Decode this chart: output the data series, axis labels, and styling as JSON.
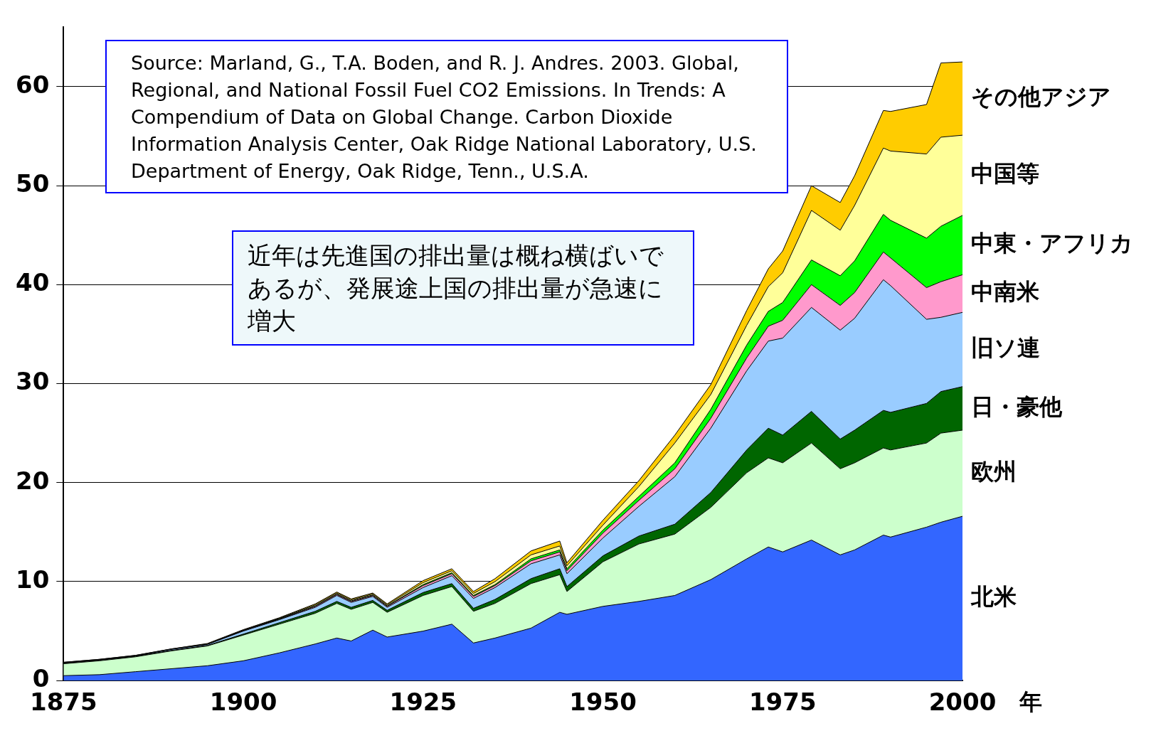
{
  "chart_data": {
    "type": "area",
    "stacked": true,
    "xlabel": "年",
    "x": [
      1875,
      1880,
      1885,
      1890,
      1895,
      1900,
      1905,
      1910,
      1913,
      1915,
      1918,
      1920,
      1925,
      1929,
      1932,
      1935,
      1940,
      1944,
      1945,
      1950,
      1955,
      1960,
      1965,
      1970,
      1973,
      1975,
      1979,
      1983,
      1985,
      1989,
      1990,
      1995,
      1997,
      2000
    ],
    "series": [
      {
        "name": "北米",
        "color": "#3366ff",
        "values": [
          0.5,
          0.6,
          0.9,
          1.2,
          1.5,
          2.0,
          2.8,
          3.7,
          4.3,
          4.0,
          5.1,
          4.4,
          5.0,
          5.7,
          3.8,
          4.3,
          5.3,
          6.9,
          6.7,
          7.5,
          8.0,
          8.6,
          10.2,
          12.3,
          13.5,
          13.0,
          14.2,
          12.7,
          13.2,
          14.7,
          14.5,
          15.5,
          16.0,
          16.6
        ]
      },
      {
        "name": "欧州",
        "color": "#ccffcc",
        "values": [
          1.2,
          1.4,
          1.5,
          1.8,
          2.0,
          2.6,
          2.9,
          3.1,
          3.5,
          3.2,
          2.8,
          2.5,
          3.6,
          3.8,
          3.2,
          3.5,
          4.5,
          3.8,
          2.3,
          4.5,
          5.8,
          6.2,
          7.3,
          8.7,
          9.0,
          9.0,
          9.8,
          8.7,
          8.8,
          8.8,
          8.8,
          8.5,
          9.0,
          8.7
        ]
      },
      {
        "name": "日・豪他",
        "color": "#006600",
        "values": [
          0.05,
          0.05,
          0.05,
          0.05,
          0.05,
          0.1,
          0.15,
          0.2,
          0.2,
          0.2,
          0.2,
          0.2,
          0.3,
          0.3,
          0.3,
          0.4,
          0.5,
          0.6,
          0.5,
          0.6,
          0.8,
          1.0,
          1.5,
          2.3,
          3.0,
          2.8,
          3.2,
          3.0,
          3.3,
          3.8,
          3.8,
          4.0,
          4.2,
          4.4
        ]
      },
      {
        "name": "旧ソ連",
        "color": "#99ccff",
        "values": [
          0.05,
          0.05,
          0.05,
          0.1,
          0.1,
          0.3,
          0.3,
          0.4,
          0.6,
          0.5,
          0.4,
          0.3,
          0.5,
          0.8,
          1.0,
          1.2,
          1.5,
          1.4,
          1.3,
          1.8,
          3.0,
          4.8,
          6.5,
          8.0,
          8.8,
          9.8,
          10.5,
          11.0,
          11.3,
          13.2,
          12.8,
          8.5,
          7.5,
          7.5
        ]
      },
      {
        "name": "中南米",
        "color": "#ff99cc",
        "values": [
          0,
          0,
          0,
          0,
          0,
          0.05,
          0.05,
          0.1,
          0.1,
          0.1,
          0.1,
          0.1,
          0.2,
          0.2,
          0.2,
          0.2,
          0.3,
          0.3,
          0.3,
          0.5,
          0.6,
          0.8,
          1.0,
          1.3,
          1.5,
          1.8,
          2.3,
          2.5,
          2.6,
          2.8,
          2.8,
          3.2,
          3.6,
          3.8
        ]
      },
      {
        "name": "中東・アフリカ",
        "color": "#00ff00",
        "values": [
          0,
          0,
          0,
          0,
          0,
          0,
          0.05,
          0.05,
          0.05,
          0.05,
          0.05,
          0.05,
          0.1,
          0.1,
          0.1,
          0.1,
          0.2,
          0.2,
          0.2,
          0.3,
          0.4,
          0.6,
          0.9,
          1.3,
          1.5,
          1.8,
          2.5,
          3.0,
          3.2,
          3.8,
          3.8,
          5.0,
          5.6,
          6.0
        ]
      },
      {
        "name": "中国等",
        "color": "#ffff99",
        "values": [
          0.05,
          0.05,
          0.05,
          0.05,
          0.05,
          0.05,
          0.05,
          0.1,
          0.1,
          0.1,
          0.1,
          0.1,
          0.2,
          0.2,
          0.2,
          0.3,
          0.4,
          0.4,
          0.3,
          0.5,
          1.0,
          2.0,
          1.5,
          2.0,
          2.5,
          3.0,
          5.0,
          4.6,
          5.6,
          6.7,
          7.0,
          8.5,
          9.0,
          8.1
        ]
      },
      {
        "name": "その他アジア",
        "color": "#ffcc00",
        "values": [
          0,
          0,
          0,
          0,
          0.05,
          0.05,
          0.05,
          0.1,
          0.1,
          0.1,
          0.1,
          0.1,
          0.2,
          0.2,
          0.2,
          0.3,
          0.4,
          0.5,
          0.3,
          0.5,
          0.6,
          0.8,
          1.0,
          1.5,
          1.8,
          2.2,
          2.5,
          2.8,
          3.0,
          3.8,
          4.0,
          5.0,
          7.5,
          7.4
        ]
      }
    ],
    "xlim": [
      1875,
      2000
    ],
    "xticks": [
      1875,
      1900,
      1925,
      1950,
      1975,
      2000
    ],
    "ylim": [
      0,
      66
    ],
    "yticks": [
      0,
      10,
      20,
      30,
      40,
      50,
      60
    ],
    "grid": "y",
    "annotations": [
      "Source: Marland, G., T.A. Boden, and R. J. Andres. 2003. Global, Regional, and National Fossil Fuel CO2 Emissions. In Trends: A Compendium of Data on Global Change. Carbon Dioxide Information Analysis Center, Oak Ridge National Laboratory, U.S. Department of Energy, Oak Ridge, Tenn., U.S.A.",
      "近年は先進国の排出量は概ね横ばいであるが、発展途上国の排出量が急速に増大"
    ]
  }
}
